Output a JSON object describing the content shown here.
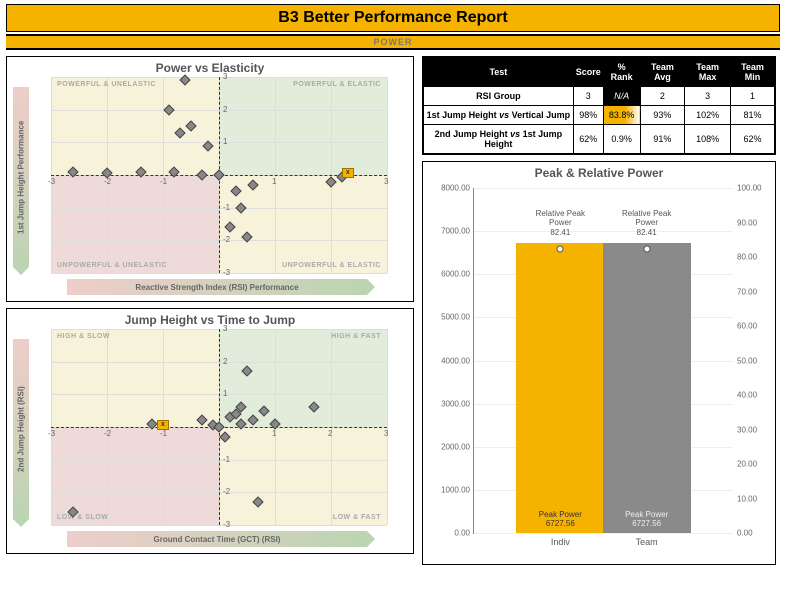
{
  "title": "B3 Better Performance Report",
  "subtitle": "POWER",
  "colors": {
    "accent": "#f5b300",
    "q_green": "rgba(170,200,150,0.35)",
    "q_yellow": "rgba(230,220,150,0.35)",
    "q_red": "rgba(210,150,150,0.35)",
    "diamond": "#888888",
    "bar_indiv": "#f5b300",
    "bar_team": "#8a8a8a"
  },
  "chart1": {
    "title": "Power vs Elasticity",
    "xaxis_label": "Reactive Strength Index (RSI) Performance",
    "yaxis_label": "1st Jump Height Performance",
    "xlim": [
      -3,
      3
    ],
    "ylim": [
      -3,
      3
    ],
    "tick_step": 1,
    "quad_labels": {
      "tl": "POWERFUL & UNELASTIC",
      "tr": "POWERFUL & ELASTIC",
      "bl": "UNPOWERFUL & UNELASTIC",
      "br": "UNPOWERFUL & ELASTIC"
    },
    "points": [
      [
        -2.6,
        0.1
      ],
      [
        -2.0,
        0.05
      ],
      [
        -1.4,
        0.1
      ],
      [
        -0.9,
        2.0
      ],
      [
        -0.8,
        0.1
      ],
      [
        -0.7,
        1.3
      ],
      [
        -0.6,
        2.9
      ],
      [
        -0.5,
        1.5
      ],
      [
        -0.3,
        0.0
      ],
      [
        -0.2,
        0.9
      ],
      [
        0.0,
        0.0
      ],
      [
        0.2,
        -1.6
      ],
      [
        0.3,
        -0.5
      ],
      [
        0.4,
        -1.0
      ],
      [
        0.5,
        -1.9
      ],
      [
        0.6,
        -0.3
      ],
      [
        2.0,
        -0.2
      ],
      [
        2.2,
        -0.05
      ]
    ],
    "marker_x": [
      2.3,
      0.05
    ]
  },
  "chart2": {
    "title": "Jump Height vs Time to Jump",
    "xaxis_label": "Ground Contact Time (GCT) (RSI)",
    "yaxis_label": "2nd Jump Height (RSI)",
    "xlim": [
      -3,
      3
    ],
    "ylim": [
      -3,
      3
    ],
    "tick_step": 1,
    "quad_labels": {
      "tl": "HIGH & SLOW",
      "tr": "HIGH & FAST",
      "bl": "LOW & SLOW",
      "br": "LOW & FAST"
    },
    "points": [
      [
        -2.6,
        -2.6
      ],
      [
        -1.2,
        0.1
      ],
      [
        -0.3,
        0.2
      ],
      [
        -0.1,
        0.05
      ],
      [
        0.0,
        0.0
      ],
      [
        0.1,
        -0.3
      ],
      [
        0.2,
        0.3
      ],
      [
        0.3,
        0.4
      ],
      [
        0.4,
        0.1
      ],
      [
        0.4,
        0.6
      ],
      [
        0.5,
        1.7
      ],
      [
        0.6,
        0.2
      ],
      [
        0.7,
        -2.3
      ],
      [
        0.8,
        0.5
      ],
      [
        1.0,
        0.1
      ],
      [
        1.7,
        0.6
      ]
    ],
    "marker_x": [
      -1.0,
      0.05
    ]
  },
  "table": {
    "headers": [
      "Test",
      "Score",
      "% Rank",
      "Team Avg",
      "Team Max",
      "Team Min"
    ],
    "rows": [
      {
        "label": "RSI Group",
        "score": "3",
        "rank": "N/A",
        "avg": "2",
        "max": "3",
        "min": "1",
        "rank_style": "na"
      },
      {
        "label_html": "1st Jump Height <i>vs</i> Vertical Jump",
        "score": "98%",
        "rank": "83.8%",
        "avg": "93%",
        "max": "102%",
        "min": "81%",
        "rank_style": "highlight"
      },
      {
        "label_html": "<b>2nd Jump Height</b> <i>vs</i> <b>1st Jump Height</b>",
        "score": "62%",
        "rank": "0.9%",
        "avg": "91%",
        "max": "108%",
        "min": "62%",
        "rank_style": ""
      }
    ]
  },
  "bar_chart": {
    "title": "Peak & Relative Power",
    "left_ylim": [
      0,
      8000
    ],
    "left_step": 1000,
    "right_ylim": [
      0,
      100
    ],
    "right_step": 10,
    "bars": [
      {
        "name": "Indiv",
        "peak": 6727.56,
        "rel": 82.41,
        "color": "#f5b300",
        "rel_label": "Relative Peak\nPower\n82.41",
        "peak_label": "Peak Power\n6727.56"
      },
      {
        "name": "Team",
        "peak": 6727.56,
        "rel": 82.41,
        "color": "#8a8a8a",
        "rel_label": "Relative Peak\nPower\n82.41",
        "peak_label": "Peak Power\n6727.56"
      }
    ]
  }
}
